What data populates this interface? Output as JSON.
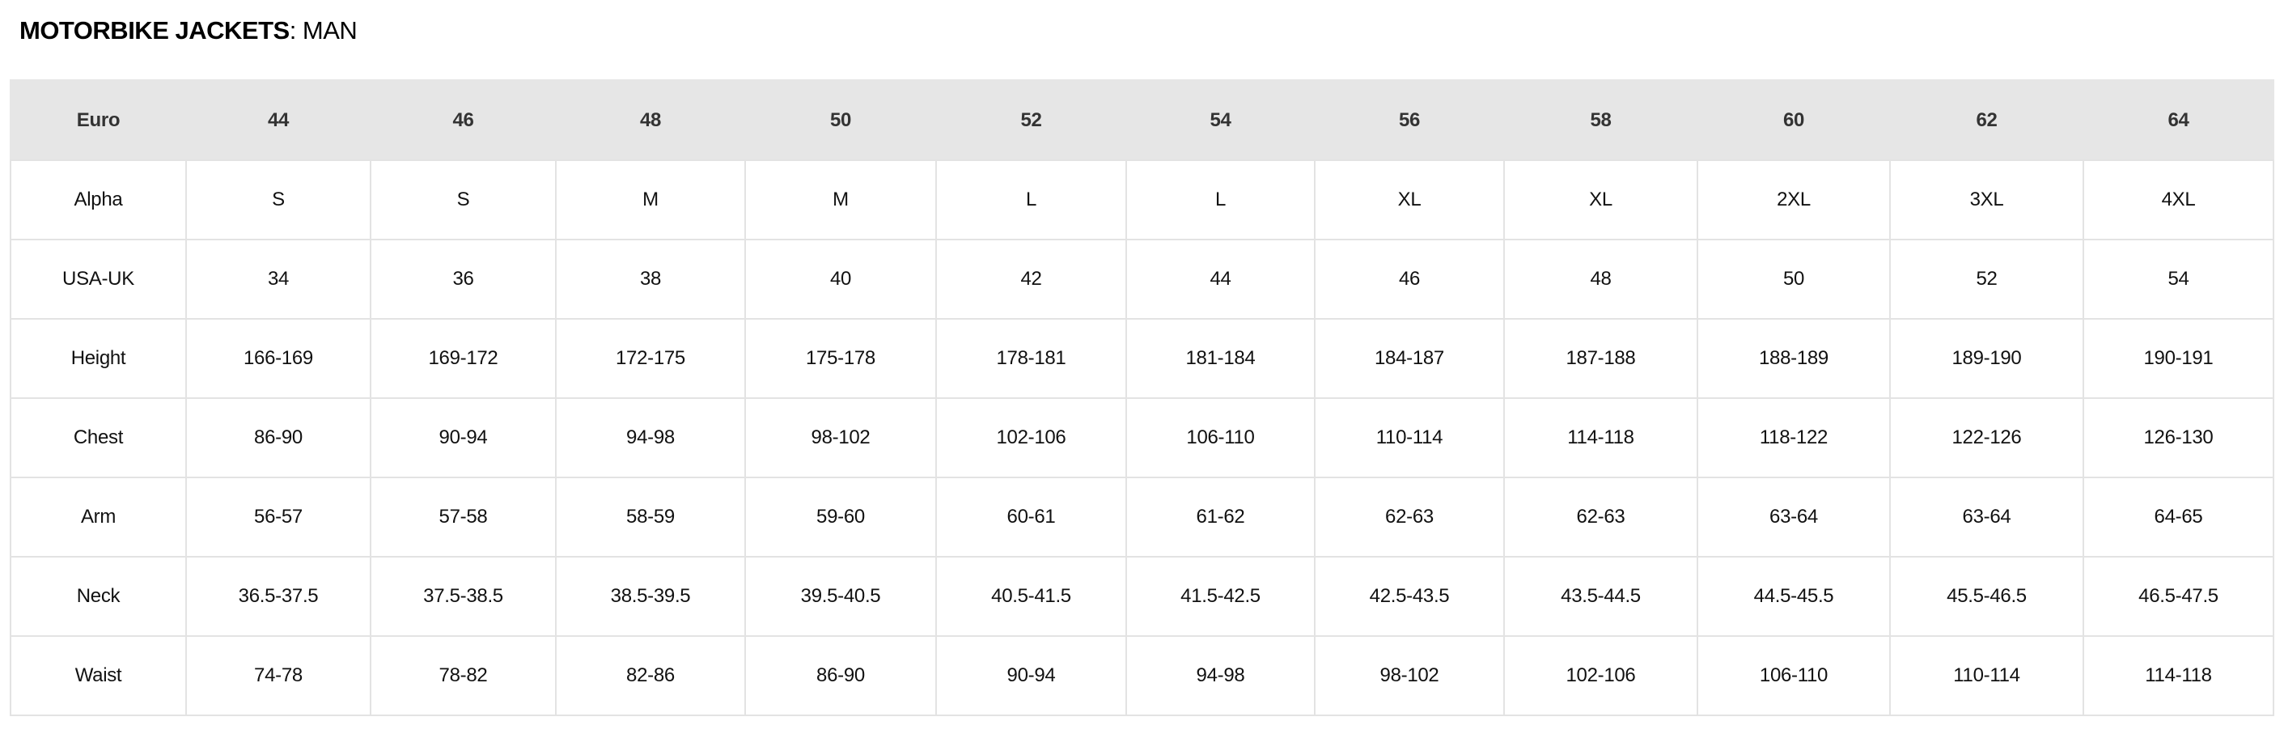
{
  "title": {
    "bold": "MOTORBIKE JACKETS",
    "suffix": ": MAN"
  },
  "table": {
    "header": [
      "Euro",
      "44",
      "46",
      "48",
      "50",
      "52",
      "54",
      "56",
      "58",
      "60",
      "62",
      "64"
    ],
    "rows": [
      [
        "Alpha",
        "S",
        "S",
        "M",
        "M",
        "L",
        "L",
        "XL",
        "XL",
        "2XL",
        "3XL",
        "4XL"
      ],
      [
        "USA-UK",
        "34",
        "36",
        "38",
        "40",
        "42",
        "44",
        "46",
        "48",
        "50",
        "52",
        "54"
      ],
      [
        "Height",
        "166-169",
        "169-172",
        "172-175",
        "175-178",
        "178-181",
        "181-184",
        "184-187",
        "187-188",
        "188-189",
        "189-190",
        "190-191"
      ],
      [
        "Chest",
        "86-90",
        "90-94",
        "94-98",
        "98-102",
        "102-106",
        "106-110",
        "110-114",
        "114-118",
        "118-122",
        "122-126",
        "126-130"
      ],
      [
        "Arm",
        "56-57",
        "57-58",
        "58-59",
        "59-60",
        "60-61",
        "61-62",
        "62-63",
        "62-63",
        "63-64",
        "63-64",
        "64-65"
      ],
      [
        "Neck",
        "36.5-37.5",
        "37.5-38.5",
        "38.5-39.5",
        "39.5-40.5",
        "40.5-41.5",
        "41.5-42.5",
        "42.5-43.5",
        "43.5-44.5",
        "44.5-45.5",
        "45.5-46.5",
        "46.5-47.5"
      ],
      [
        "Waist",
        "74-78",
        "78-82",
        "82-86",
        "86-90",
        "90-94",
        "94-98",
        "98-102",
        "102-106",
        "106-110",
        "110-114",
        "114-118"
      ]
    ]
  },
  "colors": {
    "header_bg": "#e6e6e6",
    "border": "#e3e3e3"
  }
}
